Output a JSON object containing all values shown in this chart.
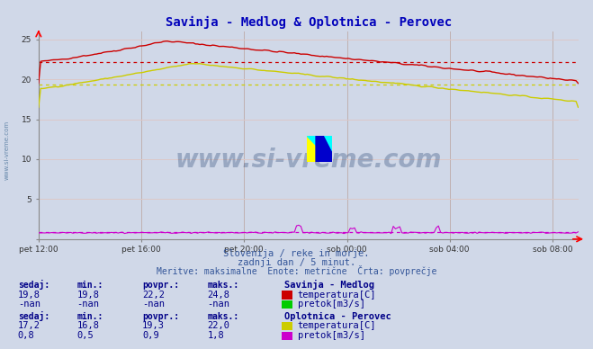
{
  "title": "Savinja - Medlog & Oplotnica - Perovec",
  "title_color": "#0000bb",
  "title_fontsize": 10,
  "background_color": "#d0d8e8",
  "plot_bg_color": "#d0d8e8",
  "xlim_hours": 21,
  "ylim": [
    0,
    26
  ],
  "yticks": [
    0,
    5,
    10,
    15,
    20,
    25
  ],
  "xtick_labels": [
    "pet 12:00",
    "pet 16:00",
    "pet 20:00",
    "sob 00:00",
    "sob 04:00",
    "sob 08:00"
  ],
  "xtick_positions": [
    0,
    4,
    8,
    12,
    16,
    20
  ],
  "grid_color": "#c0b0b0",
  "grid_color_h": "#dcc8c8",
  "subtitle1": "Slovenija / reke in morje.",
  "subtitle2": "zadnji dan / 5 minut.",
  "subtitle3": "Meritve: maksimalne  Enote: metrične  Črta: povprečje",
  "watermark": "www.si-vreme.com",
  "watermark_side": "www.si-vreme.com",
  "table_headers": [
    "sedaj:",
    "min.:",
    "povpr.:",
    "maks.:"
  ],
  "station1_name": "Savinja - Medlog",
  "station1_row1": [
    "19,8",
    "19,8",
    "22,2",
    "24,8"
  ],
  "station1_row2": [
    "-nan",
    "-nan",
    "-nan",
    "-nan"
  ],
  "station1_label1": "temperatura[C]",
  "station1_label2": "pretok[m3/s]",
  "station1_color1": "#cc0000",
  "station1_color2": "#00cc00",
  "station2_name": "Oplotnica - Perovec",
  "station2_row1": [
    "17,2",
    "16,8",
    "19,3",
    "22,0"
  ],
  "station2_row2": [
    "0,8",
    "0,5",
    "0,9",
    "1,8"
  ],
  "station2_label1": "temperatura[C]",
  "station2_label2": "pretok[m3/s]",
  "station2_color1": "#cccc00",
  "station2_color2": "#cc00cc",
  "avg_savinja_temp": 22.2,
  "avg_oplotnica_temp": 19.3,
  "avg_oplotnica_flow": 0.9
}
